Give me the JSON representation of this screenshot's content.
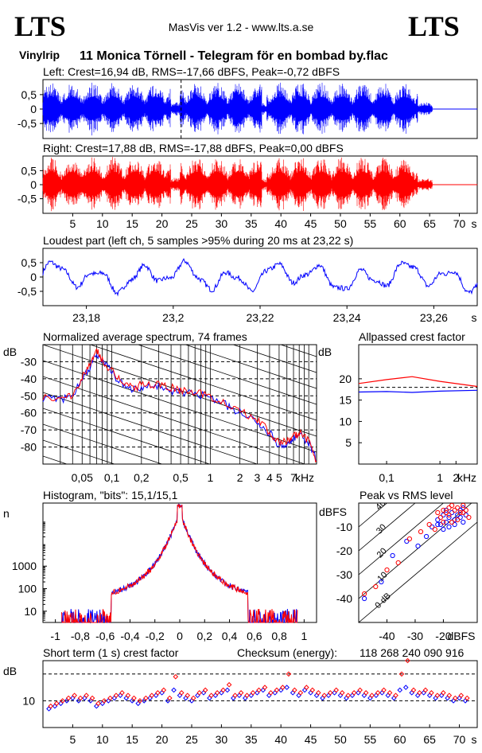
{
  "header": {
    "logo_left": "LTS",
    "logo_right": "LTS",
    "app_title": "MasVis ver 1.2 - www.lts.a.se",
    "source_tag": "Vinylrip",
    "track_title": "11 Monica Törnell - Telegram för en bombad by.flac"
  },
  "colors": {
    "left": "#0000ff",
    "right": "#ff0000",
    "axis": "#000000"
  },
  "chart_data": [
    {
      "id": "left-waveform",
      "type": "line",
      "title": "Left: Crest=16,94 dB, RMS=-17,66 dBFS, Peak=-0,72 dBFS",
      "ylim": [
        -1,
        1
      ],
      "xlim": [
        0,
        73
      ],
      "yticks": [
        "0,5",
        "0",
        "-0,5"
      ],
      "ytick_values": [
        0.5,
        0,
        -0.5
      ],
      "peak_amplitude": 0.93,
      "track_end_s": 65,
      "silence_after_s": 65.5,
      "marker_s": 23.22
    },
    {
      "id": "right-waveform",
      "type": "line",
      "title": "Right: Crest=17,88 dB, RMS=-17,88 dBFS, Peak=0,00 dBFS",
      "ylim": [
        -1,
        1
      ],
      "xlim": [
        0,
        73
      ],
      "yticks": [
        "0,5",
        "0",
        "-0,5"
      ],
      "ytick_values": [
        0.5,
        0,
        -0.5
      ],
      "xticks": [
        "5",
        "10",
        "15",
        "20",
        "25",
        "30",
        "35",
        "40",
        "45",
        "50",
        "55",
        "60",
        "65",
        "70"
      ],
      "xtick_values": [
        5,
        10,
        15,
        20,
        25,
        30,
        35,
        40,
        45,
        50,
        55,
        60,
        65,
        70
      ],
      "xunit": "s",
      "peak_amplitude": 1.0
    },
    {
      "id": "loudest-part",
      "type": "line",
      "title": "Loudest part (left  ch, 5 samples >95% during 20 ms at 23,22 s)",
      "xlim": [
        23.17,
        23.27
      ],
      "ylim": [
        -1,
        1
      ],
      "yticks": [
        "0,5",
        "0",
        "-0,5"
      ],
      "ytick_values": [
        0.5,
        0,
        -0.5
      ],
      "xticks": [
        "23,18",
        "23,2",
        "23,22",
        "23,24",
        "23,26"
      ],
      "xtick_values": [
        23.18,
        23.2,
        23.22,
        23.24,
        23.26
      ],
      "xunit": "s"
    },
    {
      "id": "spectrum",
      "type": "line",
      "title": "Normalized average spectrum, 74 frames",
      "ylabel": "dB",
      "xunit": "kHz",
      "ylim": [
        -90,
        -20
      ],
      "yticks": [
        "-30",
        "-40",
        "-50",
        "-60",
        "-70",
        "-80"
      ],
      "ytick_values": [
        -30,
        -40,
        -50,
        -60,
        -70,
        -80
      ],
      "xticks": [
        "0,05",
        "0,1",
        "0,2",
        "0,5",
        "1",
        "2",
        "3",
        "4",
        "5",
        "7"
      ],
      "xtick_values": [
        0.05,
        0.1,
        0.2,
        0.5,
        1,
        2,
        3,
        4,
        5,
        7
      ],
      "xlim_khz": [
        0.02,
        12
      ],
      "series": [
        {
          "name": "left",
          "freq_khz": [
            0.02,
            0.03,
            0.04,
            0.05,
            0.06,
            0.07,
            0.08,
            0.1,
            0.13,
            0.17,
            0.22,
            0.3,
            0.4,
            0.5,
            0.7,
            1,
            1.5,
            2,
            3,
            4,
            5,
            6,
            7,
            8,
            10,
            12
          ],
          "db": [
            -51,
            -53,
            -50,
            -40,
            -33,
            -25,
            -30,
            -36,
            -44,
            -46,
            -44,
            -45,
            -47,
            -48,
            -49,
            -51,
            -56,
            -60,
            -65,
            -72,
            -79,
            -78,
            -75,
            -73,
            -77,
            -88
          ]
        },
        {
          "name": "right",
          "freq_khz": [
            0.02,
            0.03,
            0.04,
            0.05,
            0.06,
            0.07,
            0.08,
            0.1,
            0.13,
            0.17,
            0.22,
            0.3,
            0.4,
            0.5,
            0.7,
            1,
            1.5,
            2,
            3,
            4,
            5,
            6,
            7,
            8,
            10,
            12
          ],
          "db": [
            -50,
            -52,
            -49,
            -39,
            -32,
            -23,
            -29,
            -35,
            -42,
            -45,
            -43,
            -44,
            -45,
            -47,
            -48,
            -50,
            -55,
            -59,
            -64,
            -71,
            -78,
            -77,
            -74,
            -72,
            -76,
            -88
          ]
        }
      ]
    },
    {
      "id": "allpassed-crest",
      "type": "line",
      "title": "Allpassed crest factor",
      "ylabel": "dB",
      "xunit": "kHz",
      "ylim": [
        0,
        28
      ],
      "yticks": [
        "20",
        "15",
        "10",
        "5"
      ],
      "ytick_values": [
        20,
        15,
        10,
        5
      ],
      "xticks": [
        "0,1",
        "1",
        "2"
      ],
      "xtick_values": [
        0.1,
        1,
        2
      ],
      "xlim_khz": [
        0.03,
        5
      ],
      "series": [
        {
          "name": "left",
          "freq_khz": [
            0.03,
            0.1,
            0.3,
            1,
            5
          ],
          "db": [
            16.9,
            17.0,
            16.8,
            17.1,
            17.3
          ]
        },
        {
          "name": "right",
          "freq_khz": [
            0.03,
            0.1,
            0.3,
            1,
            5
          ],
          "db": [
            18.9,
            19.8,
            20.5,
            19.4,
            18.2
          ]
        }
      ],
      "reference_db": 18
    },
    {
      "id": "histogram",
      "type": "line",
      "title": "Histogram, \"bits\": 15,1/15,1",
      "ylabel": "n",
      "yscale": "log",
      "yticks": [
        "1000",
        "100",
        "10"
      ],
      "ytick_values": [
        1000,
        100,
        10
      ],
      "xticks": [
        "-1",
        "-0,8",
        "-0,6",
        "-0,4",
        "-0,2",
        "0",
        "0,2",
        "0,4",
        "0,6",
        "0,8",
        "1"
      ],
      "xtick_values": [
        -1,
        -0.8,
        -0.6,
        -0.4,
        -0.2,
        0,
        0.2,
        0.4,
        0.6,
        0.8,
        1
      ],
      "xlim": [
        -1.1,
        1.1
      ],
      "ylim_log": [
        0.5,
        5.8
      ]
    },
    {
      "id": "peak-vs-rms",
      "type": "scatter",
      "title": "Peak vs RMS level",
      "ylabel": "dBFS",
      "xunit": "dBFS",
      "xlim": [
        -50,
        -8
      ],
      "ylim": [
        -50,
        0
      ],
      "yticks": [
        "-10",
        "-20",
        "-30",
        "-40"
      ],
      "ytick_values": [
        -10,
        -20,
        -30,
        -40
      ],
      "xticks": [
        "-40",
        "-30",
        "-20"
      ],
      "xtick_values": [
        -40,
        -30,
        -20
      ],
      "crest_lines": [
        "40",
        "30",
        "20",
        "10",
        "0 dB"
      ],
      "crest_values": [
        40,
        30,
        20,
        10,
        0
      ],
      "series": [
        {
          "name": "left",
          "points": [
            [
              -48,
              -40
            ],
            [
              -42,
              -33
            ],
            [
              -38,
              -22
            ],
            [
              -33,
              -16
            ],
            [
              -29,
              -18
            ],
            [
              -26,
              -14
            ],
            [
              -24,
              -10
            ],
            [
              -22,
              -7
            ],
            [
              -21,
              -9
            ],
            [
              -20,
              -5
            ],
            [
              -19,
              -8
            ],
            [
              -18,
              -6
            ],
            [
              -17,
              -4
            ],
            [
              -16,
              -7
            ],
            [
              -15,
              -5
            ],
            [
              -14,
              -3
            ],
            [
              -13,
              -8
            ],
            [
              -12,
              -5
            ],
            [
              -18,
              -10
            ],
            [
              -20,
              -11
            ],
            [
              -22,
              -9
            ],
            [
              -16,
              -9
            ],
            [
              -14,
              -6
            ],
            [
              -19,
              -3
            ],
            [
              -13,
              -2
            ]
          ]
        },
        {
          "name": "right",
          "points": [
            [
              -48,
              -38
            ],
            [
              -44,
              -35
            ],
            [
              -40,
              -28
            ],
            [
              -36,
              -25
            ],
            [
              -32,
              -15
            ],
            [
              -28,
              -12
            ],
            [
              -25,
              -9
            ],
            [
              -23,
              -11
            ],
            [
              -21,
              -6
            ],
            [
              -20,
              -3
            ],
            [
              -19,
              -4
            ],
            [
              -18,
              -2
            ],
            [
              -17,
              -8
            ],
            [
              -16,
              -3
            ],
            [
              -15,
              -2
            ],
            [
              -14,
              -4
            ],
            [
              -13,
              -1
            ],
            [
              -12,
              -3
            ],
            [
              -11,
              -6
            ],
            [
              -17,
              -1
            ],
            [
              -20,
              -8
            ],
            [
              -15,
              -7
            ],
            [
              -13,
              -4
            ],
            [
              -18,
              -5
            ],
            [
              -22,
              -4
            ]
          ]
        }
      ]
    },
    {
      "id": "short-term-crest",
      "type": "scatter",
      "title": "Short term (1 s) crest factor",
      "checksum_label": "Checksum (energy):",
      "checksum_value": "118 268 240 090 916",
      "ylabel": "dB",
      "ylim": [
        0,
        25
      ],
      "yticks": [
        "10"
      ],
      "ytick_values": [
        10
      ],
      "dashed_levels": [
        10,
        20
      ],
      "xticks": [
        "5",
        "10",
        "15",
        "20",
        "25",
        "30",
        "35",
        "40",
        "45",
        "50",
        "55",
        "60",
        "65",
        "70"
      ],
      "xtick_values": [
        5,
        10,
        15,
        20,
        25,
        30,
        35,
        40,
        45,
        50,
        55,
        60,
        65,
        70
      ],
      "xunit": "s",
      "xlim": [
        0,
        73
      ],
      "series": [
        {
          "name": "left",
          "values": [
            7,
            8,
            9,
            10,
            11,
            10,
            11,
            10,
            8,
            9,
            10,
            11,
            12,
            11,
            10,
            9,
            10,
            11,
            12,
            13,
            10,
            14,
            12,
            11,
            10,
            12,
            13,
            11,
            12,
            13,
            14,
            11,
            12,
            11,
            12,
            13,
            14,
            12,
            13,
            14,
            15,
            13,
            12,
            14,
            13,
            12,
            11,
            12,
            13,
            12,
            11,
            12,
            13,
            12,
            11,
            12,
            13,
            12,
            11,
            14,
            15,
            13,
            12,
            13,
            12,
            11,
            12,
            11,
            10,
            11,
            10
          ]
        },
        {
          "name": "right",
          "values": [
            8,
            9,
            10,
            11,
            12,
            11,
            12,
            11,
            9,
            10,
            11,
            12,
            13,
            12,
            11,
            10,
            11,
            12,
            13,
            14,
            11,
            19,
            13,
            12,
            11,
            13,
            14,
            12,
            13,
            14,
            16,
            12,
            13,
            12,
            13,
            14,
            15,
            13,
            14,
            15,
            20,
            14,
            13,
            15,
            14,
            13,
            12,
            13,
            14,
            13,
            12,
            13,
            14,
            13,
            12,
            13,
            14,
            13,
            12,
            20,
            25,
            14,
            13,
            14,
            13,
            12,
            13,
            12,
            11,
            12,
            11
          ]
        }
      ]
    }
  ]
}
